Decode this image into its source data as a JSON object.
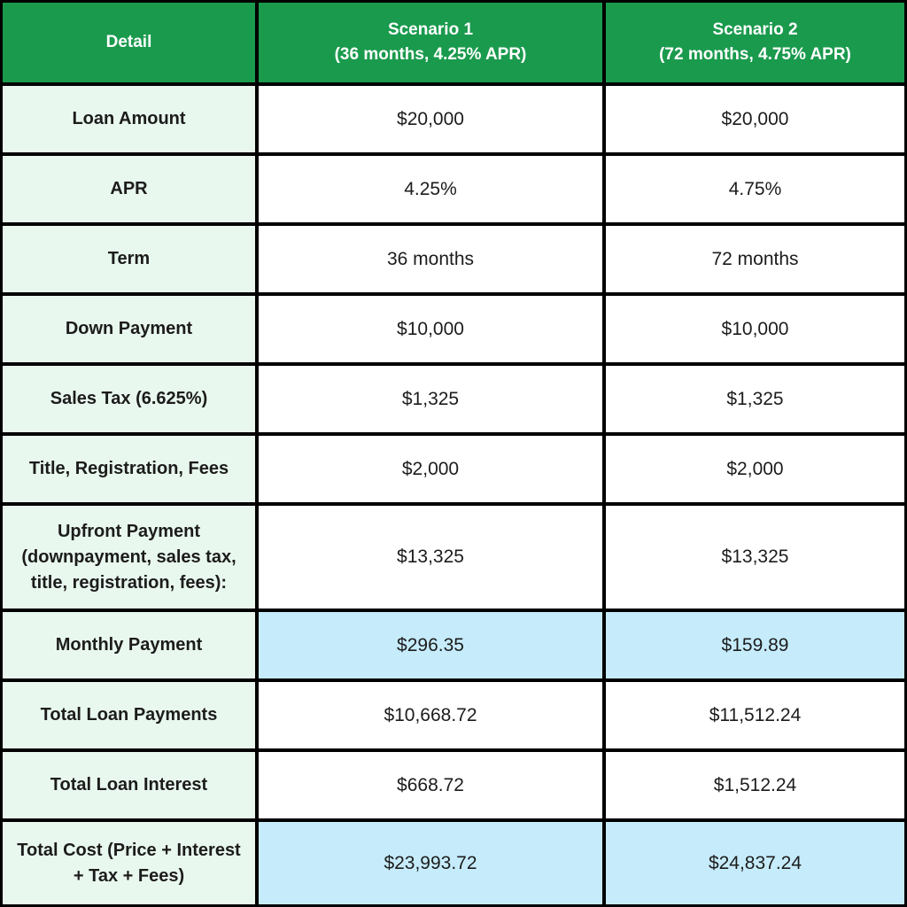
{
  "chart_data": {
    "type": "table",
    "title": "Loan scenario comparison table",
    "header": {
      "detail": "Detail",
      "scenario1": {
        "line1": "Scenario 1",
        "line2": "(36 months, 4.25% APR)"
      },
      "scenario2": {
        "line1": "Scenario 2",
        "line2": "(72 months, 4.75% APR)"
      }
    },
    "rows": [
      {
        "label": "Loan Amount",
        "scenario1": "$20,000",
        "scenario2": "$20,000",
        "highlight": false
      },
      {
        "label": "APR",
        "scenario1": "4.25%",
        "scenario2": "4.75%",
        "highlight": false
      },
      {
        "label": "Term",
        "scenario1": "36 months",
        "scenario2": "72 months",
        "highlight": false
      },
      {
        "label": "Down Payment",
        "scenario1": "$10,000",
        "scenario2": "$10,000",
        "highlight": false
      },
      {
        "label": "Sales Tax (6.625%)",
        "scenario1": "$1,325",
        "scenario2": "$1,325",
        "highlight": false
      },
      {
        "label": "Title, Registration, Fees",
        "scenario1": "$2,000",
        "scenario2": "$2,000",
        "highlight": false
      },
      {
        "label": "Upfront Payment (downpayment, sales tax, title, registration, fees):",
        "scenario1": "$13,325",
        "scenario2": "$13,325",
        "highlight": false
      },
      {
        "label": "Monthly Payment",
        "scenario1": "$296.35",
        "scenario2": "$159.89",
        "highlight": true
      },
      {
        "label": "Total Loan Payments",
        "scenario1": "$10,668.72",
        "scenario2": "$11,512.24",
        "highlight": false
      },
      {
        "label": "Total Loan Interest",
        "scenario1": "$668.72",
        "scenario2": "$1,512.24",
        "highlight": false
      },
      {
        "label": "Total Cost (Price + Interest + Tax + Fees)",
        "scenario1": "$23,993.72",
        "scenario2": "$24,837.24",
        "highlight": true
      }
    ],
    "colors": {
      "header_bg": "#1a9a4d",
      "header_text": "#ffffff",
      "label_bg": "#e9f8ee",
      "value_bg": "#ffffff",
      "highlight_bg": "#c6ecfb",
      "border": "#000000",
      "text": "#1c1c1c"
    },
    "layout": {
      "grid": "on",
      "columns_count": 3,
      "rows_count": 11
    }
  }
}
